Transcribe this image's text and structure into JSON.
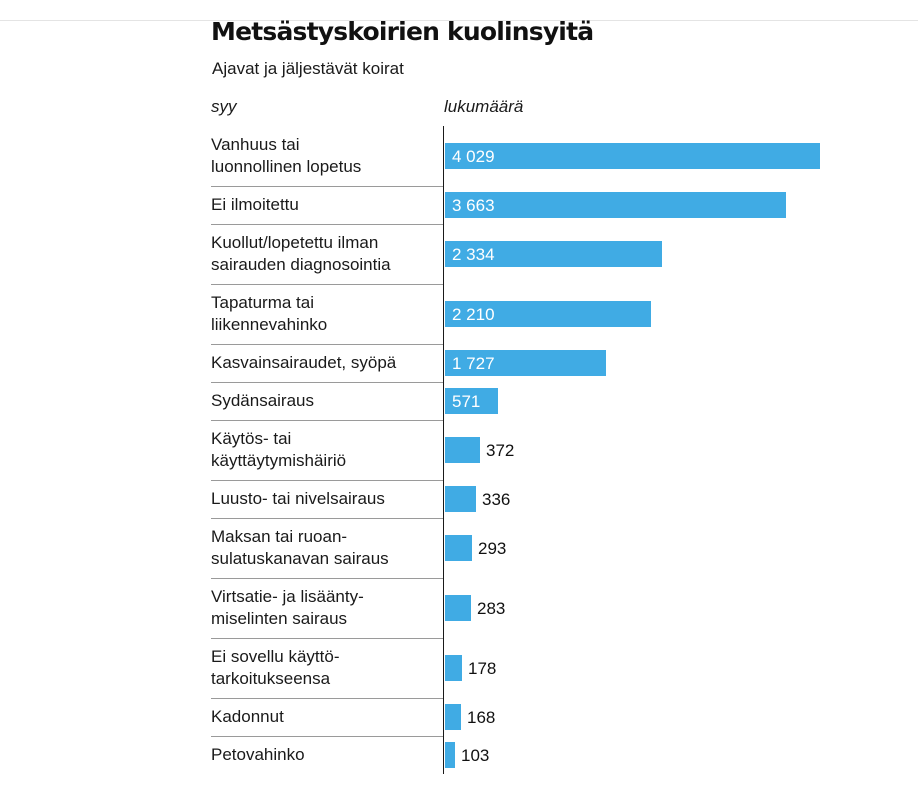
{
  "chart_data": {
    "type": "bar",
    "orientation": "horizontal",
    "title": "Metsästyskoirien kuolinsyitä",
    "subtitle": "Ajavat ja jäljestävät koirat",
    "category_header": "syy",
    "value_header": "lukumäärä",
    "bar_color": "#40abe4",
    "categories": [
      "Vanhuus tai\nluonnollinen lopetus",
      "Ei ilmoitettu",
      "Kuollut/lopetettu ilman\nsairauden diagnosointia",
      "Tapaturma tai\nliikennevahinko",
      "Kasvainsairaudet, syöpä",
      "Sydänsairaus",
      "Käytös- tai\nkäyttäytymishäiriö",
      "Luusto- tai nivelsairaus",
      "Maksan tai ruoan-\nsulatuskanavan sairaus",
      "Virtsatie- ja lisäänty-\nmiselinten sairaus",
      "Ei sovellu käyttö-\ntarkoitukseensa",
      "Kadonnut",
      "Petovahinko"
    ],
    "values": [
      4029,
      3663,
      2334,
      2210,
      1727,
      571,
      372,
      336,
      293,
      283,
      178,
      168,
      103
    ],
    "value_labels": [
      "4 029",
      "3 663",
      "2 334",
      "2 210",
      "1 727",
      "571",
      "372",
      "336",
      "293",
      "283",
      "178",
      "168",
      "103"
    ]
  }
}
